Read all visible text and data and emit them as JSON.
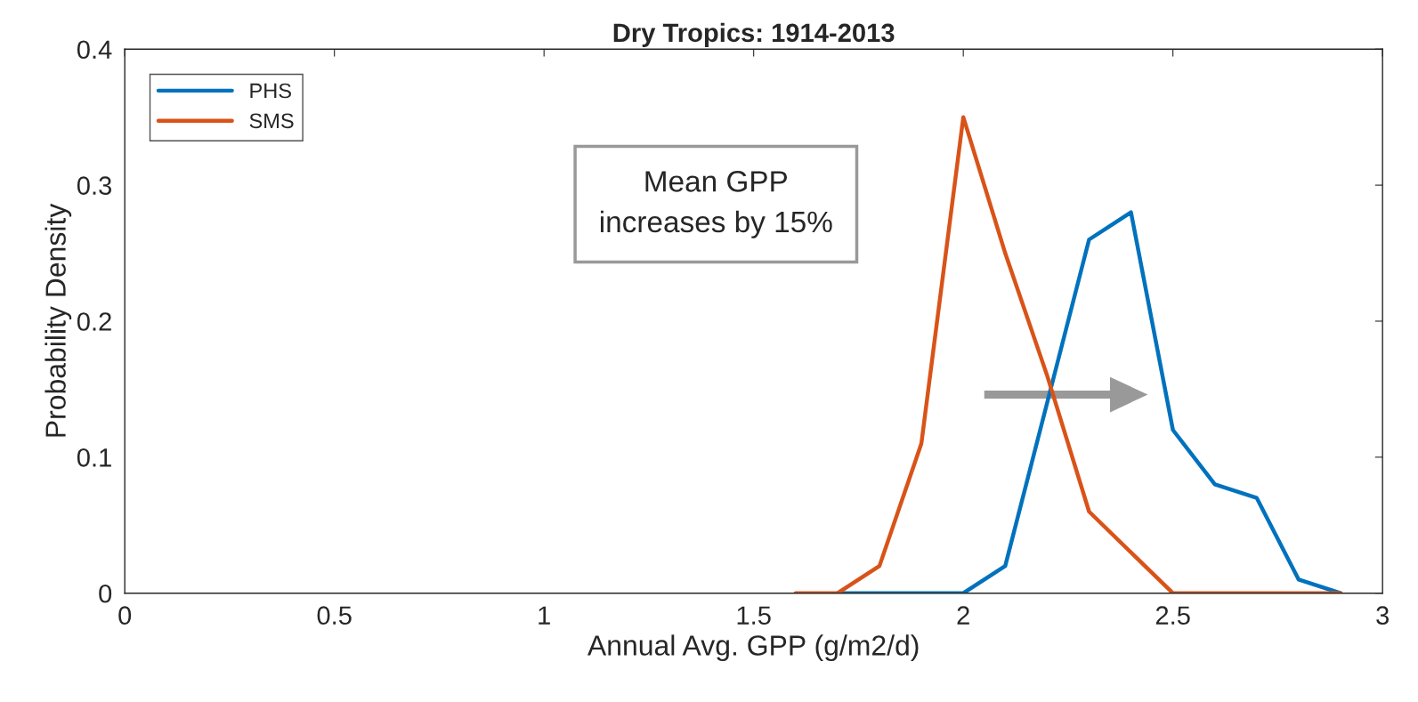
{
  "chart_data": {
    "type": "line",
    "title": "Dry Tropics: 1914-2013",
    "xlabel": "Annual Avg. GPP (g/m2/d)",
    "ylabel": "Probability Density",
    "series": [
      {
        "name": "PHS",
        "color": "#0072bd",
        "x": [
          1.7,
          1.8,
          1.9,
          2.0,
          2.1,
          2.2,
          2.3,
          2.4,
          2.5,
          2.6,
          2.7,
          2.8,
          2.9
        ],
        "values": [
          0,
          0,
          0,
          0,
          0.02,
          0.14,
          0.26,
          0.28,
          0.12,
          0.08,
          0.07,
          0.01,
          0
        ]
      },
      {
        "name": "SMS",
        "color": "#d95319",
        "x": [
          1.6,
          1.7,
          1.8,
          1.9,
          2.0,
          2.1,
          2.2,
          2.3,
          2.4,
          2.5,
          2.6,
          2.7,
          2.8,
          2.9
        ],
        "values": [
          0,
          0,
          0.02,
          0.11,
          0.35,
          0.25,
          0.16,
          0.06,
          0.03,
          0,
          0,
          0,
          0,
          0
        ]
      }
    ],
    "xlim": [
      0,
      3
    ],
    "xticks": [
      0,
      0.5,
      1,
      1.5,
      2,
      2.5,
      3
    ],
    "ylim": [
      0,
      0.4
    ],
    "yticks": [
      0,
      0.1,
      0.2,
      0.3,
      0.4
    ],
    "annotations": [
      "Mean GPP\nincreases by 15%"
    ],
    "grid": false,
    "legend": "top left",
    "marker": "none",
    "line_style": "solid"
  }
}
